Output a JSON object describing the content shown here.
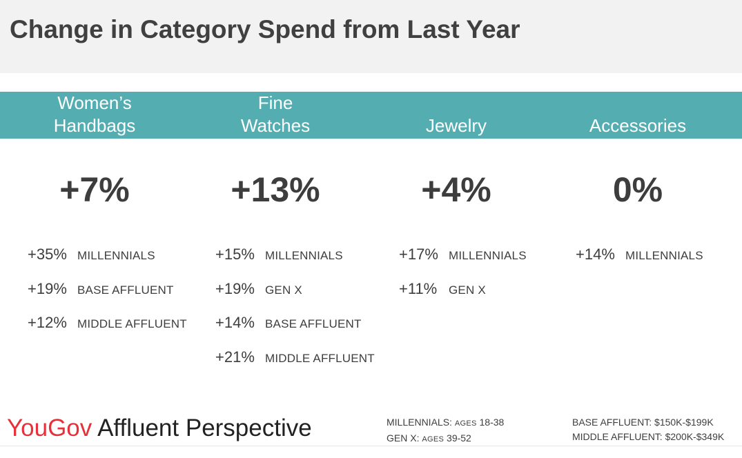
{
  "title": "Change in Category Spend from Last Year",
  "categories": [
    {
      "name": "Women’s\nHandbags",
      "total": "+7%",
      "segments": [
        {
          "pct": "+35%",
          "label": "MILLENNIALS"
        },
        {
          "pct": "+19%",
          "label": "BASE AFFLUENT"
        },
        {
          "pct": "+12%",
          "label": "MIDDLE AFFLUENT"
        }
      ]
    },
    {
      "name": "Fine\nWatches",
      "total": "+13%",
      "segments": [
        {
          "pct": "+15%",
          "label": "MILLENNIALS"
        },
        {
          "pct": "+19%",
          "label": "GEN X"
        },
        {
          "pct": "+14%",
          "label": "BASE AFFLUENT"
        },
        {
          "pct": "+21%",
          "label": "MIDDLE AFFLUENT"
        }
      ]
    },
    {
      "name": "Jewelry",
      "total": "+4%",
      "segments": [
        {
          "pct": "+17%",
          "label": "MILLENNIALS"
        },
        {
          "pct": "+11%",
          "label": "GEN X"
        }
      ]
    },
    {
      "name": "Accessories",
      "total": "0%",
      "segments": [
        {
          "pct": "+14%",
          "label": "MILLENNIALS"
        }
      ]
    }
  ],
  "logo": {
    "brand": "YouGov",
    "product": "Affluent Perspective"
  },
  "legend": {
    "millennials": {
      "label": "MILLENNIALS:",
      "ages_word": "AGES",
      "range": "18-38"
    },
    "genx": {
      "label": "GEN X:",
      "ages_word": "AGES",
      "range": "39-52"
    },
    "base_affluent": "BASE AFFLUENT: $150K-$199K",
    "middle_affluent": "MIDDLE AFFLUENT: $200K-$349K"
  },
  "colors": {
    "band": "#54adb1",
    "brand_red": "#e8303a",
    "title_bg": "#f2f2f2"
  }
}
